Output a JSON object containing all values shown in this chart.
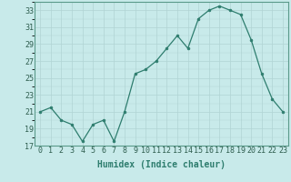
{
  "x": [
    0,
    1,
    2,
    3,
    4,
    5,
    6,
    7,
    8,
    9,
    10,
    11,
    12,
    13,
    14,
    15,
    16,
    17,
    18,
    19,
    20,
    21,
    22,
    23
  ],
  "y": [
    21,
    21.5,
    20,
    19.5,
    17.5,
    19.5,
    20,
    17.5,
    21,
    25.5,
    26,
    27,
    28.5,
    30,
    28.5,
    32,
    33,
    33.5,
    33,
    32.5,
    29.5,
    25.5,
    22.5,
    21
  ],
  "line_color": "#2e7d6e",
  "marker_color": "#2e7d6e",
  "bg_color": "#c8eaea",
  "grid_color": "#b0d4d4",
  "xlabel": "Humidex (Indice chaleur)",
  "xlabel_fontsize": 7,
  "tick_fontsize": 6,
  "ylim": [
    17,
    34
  ],
  "yticks": [
    17,
    19,
    21,
    23,
    25,
    27,
    29,
    31,
    33
  ],
  "xlim": [
    -0.5,
    23.5
  ],
  "marker_size": 2.0,
  "linewidth": 0.9
}
